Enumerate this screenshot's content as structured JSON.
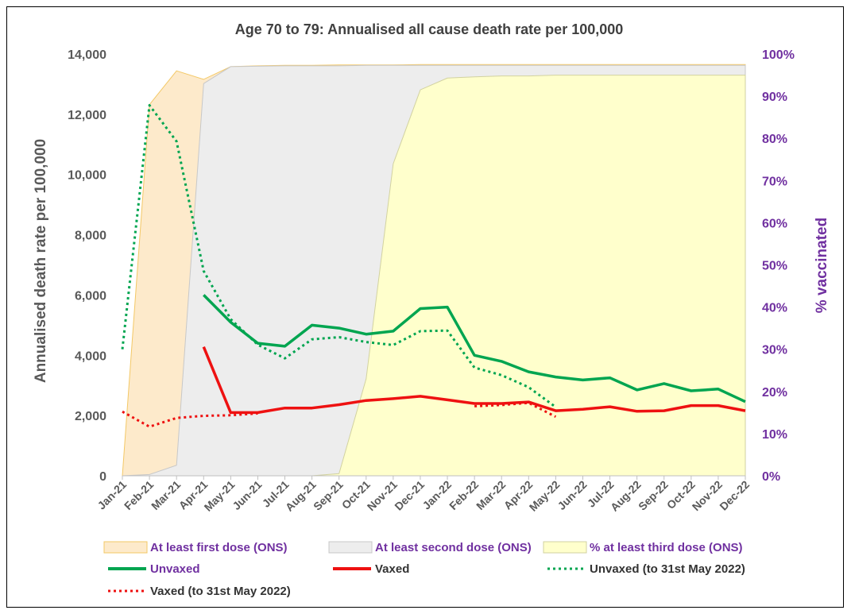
{
  "chart_data": {
    "type": "line",
    "title": "Age 70 to 79: Annualised all cause death rate per 100,000",
    "ylabel": "Annualised death rate per 100,000",
    "y2label": "% vaccinated",
    "ylim": [
      0,
      14000
    ],
    "y2lim": [
      0,
      100
    ],
    "yticks": [
      "0",
      "2,000",
      "4,000",
      "6,000",
      "8,000",
      "10,000",
      "12,000",
      "14,000"
    ],
    "y2ticks": [
      "0%",
      "10%",
      "20%",
      "30%",
      "40%",
      "50%",
      "60%",
      "70%",
      "80%",
      "90%",
      "100%"
    ],
    "categories": [
      "Jan-21",
      "Feb-21",
      "Mar-21",
      "Apr-21",
      "May-21",
      "Jun-21",
      "Jul-21",
      "Aug-21",
      "Sep-21",
      "Oct-21",
      "Nov-21",
      "Dec-21",
      "Jan-22",
      "Feb-22",
      "Mar-22",
      "Apr-22",
      "May-22",
      "Jun-22",
      "Jul-22",
      "Aug-22",
      "Sep-22",
      "Oct-22",
      "Nov-22",
      "Dec-22"
    ],
    "areas": [
      {
        "name": "At least first dose (ONS)",
        "color": "#fdeacb",
        "stroke": "#f3c866",
        "values": [
          0,
          88,
          96,
          94,
          97,
          97.2,
          97.3,
          97.3,
          97.4,
          97.4,
          97.4,
          97.5,
          97.5,
          97.5,
          97.5,
          97.5,
          97.5,
          97.5,
          97.5,
          97.5,
          97.5,
          97.5,
          97.5,
          97.5
        ]
      },
      {
        "name": "At least second dose (ONS)",
        "color": "#ededed",
        "stroke": "#c8c8c8",
        "values": [
          0,
          0.3,
          2.5,
          93,
          97,
          97.1,
          97.2,
          97.2,
          97.2,
          97.3,
          97.3,
          97.3,
          97.3,
          97.3,
          97.3,
          97.3,
          97.3,
          97.3,
          97.3,
          97.3,
          97.3,
          97.3,
          97.3,
          97.3
        ]
      },
      {
        "name": "% at least third dose (ONS)",
        "color": "#ffffcc",
        "stroke": "#d2d2a0",
        "values": [
          null,
          null,
          null,
          null,
          null,
          null,
          null,
          0,
          0.5,
          23,
          74,
          91.5,
          94.3,
          94.6,
          94.8,
          94.8,
          95,
          95,
          95,
          95,
          95,
          95,
          95,
          95
        ]
      }
    ],
    "series": [
      {
        "name": "Unvaxed",
        "color": "#00a550",
        "style": "solid",
        "values": [
          null,
          null,
          null,
          6000,
          5100,
          4400,
          4300,
          5000,
          4900,
          4700,
          4800,
          5550,
          5600,
          4000,
          3800,
          3450,
          3280,
          3180,
          3250,
          2850,
          3060,
          2820,
          2880,
          2460
        ]
      },
      {
        "name": "Vaxed",
        "color": "#ee1111",
        "style": "solid",
        "values": [
          null,
          null,
          null,
          4280,
          2100,
          2100,
          2250,
          2250,
          2360,
          2500,
          2560,
          2640,
          2520,
          2400,
          2400,
          2450,
          2160,
          2210,
          2290,
          2140,
          2160,
          2330,
          2330,
          2160
        ]
      },
      {
        "name": "Unvaxed (to 31st May 2022)",
        "color": "#00a550",
        "style": "dotted",
        "values": [
          4200,
          12300,
          11100,
          6800,
          5200,
          4350,
          3900,
          4530,
          4600,
          4440,
          4340,
          4800,
          4820,
          3590,
          3340,
          2940,
          2280,
          null,
          null,
          null,
          null,
          null,
          null,
          null
        ]
      },
      {
        "name": "Vaxed (to 31st May 2022)",
        "color": "#ee1111",
        "style": "dotted",
        "values": [
          2130,
          1630,
          1920,
          1990,
          2010,
          2070,
          null,
          null,
          null,
          null,
          null,
          null,
          null,
          2310,
          2350,
          2420,
          1960,
          null,
          null,
          null,
          null,
          null,
          null,
          null
        ]
      }
    ],
    "legend": {
      "position": "bottom",
      "items": [
        {
          "label": "At least first dose (ONS)",
          "kind": "area",
          "color": "#fdeacb",
          "stroke": "#f3c866",
          "text_color": "#7030a0"
        },
        {
          "label": "At least second dose (ONS)",
          "kind": "area",
          "color": "#ededed",
          "stroke": "#c8c8c8",
          "text_color": "#7030a0"
        },
        {
          "label": "% at least third dose (ONS)",
          "kind": "area",
          "color": "#ffffcc",
          "stroke": "#d2d2a0",
          "text_color": "#7030a0"
        },
        {
          "label": "Unvaxed",
          "kind": "line",
          "color": "#00a550",
          "text_color": "#7030a0"
        },
        {
          "label": "Vaxed",
          "kind": "line",
          "color": "#ee1111",
          "text_color": "#333333"
        },
        {
          "label": "Unvaxed (to 31st May 2022)",
          "kind": "dotted",
          "color": "#00a550",
          "text_color": "#333333"
        },
        {
          "label": "Vaxed (to 31st May 2022)",
          "kind": "dotted",
          "color": "#ee1111",
          "text_color": "#333333"
        }
      ]
    },
    "colors": {
      "text": "#595959",
      "right_axis": "#7030a0",
      "title": "#404040"
    }
  }
}
